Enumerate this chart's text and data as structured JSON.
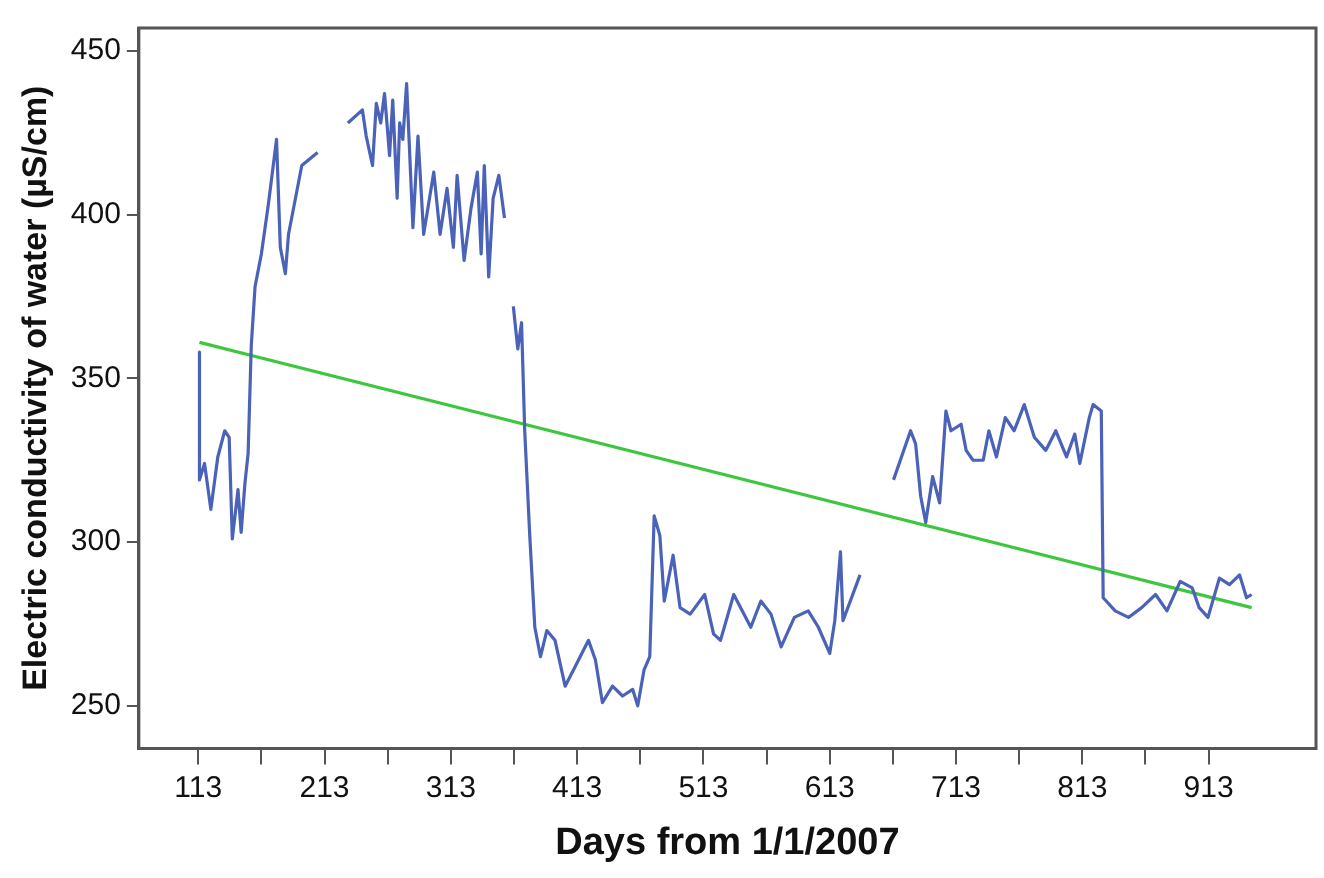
{
  "chart_data": {
    "type": "line",
    "xlabel": "Days from 1/1/2007",
    "ylabel": "Electric conductivity of water (µS/cm)",
    "x": [
      114,
      114,
      118,
      123,
      128.5,
      134,
      137.5,
      140,
      144.5,
      147,
      150,
      152.5,
      155,
      158,
      163,
      168.5,
      175,
      178,
      182,
      184.5,
      190,
      195,
      207.5,
      220,
      231.5,
      243,
      246,
      251,
      254,
      257.5,
      260.5,
      264.5,
      267,
      270.5,
      272.5,
      275,
      278,
      283,
      287,
      291.5,
      299.5,
      304.5,
      310,
      315,
      318,
      323.5,
      329,
      334,
      337,
      339.5,
      343,
      346.5,
      351,
      355.5,
      359,
      362.5,
      366,
      369,
      371.5,
      375.5,
      379.5,
      384,
      389,
      395.5,
      403.5,
      411.5,
      422,
      427.5,
      433,
      441,
      449,
      457,
      461,
      466,
      470.5,
      474,
      478.5,
      482,
      489,
      494.5,
      502.5,
      514,
      521,
      526.5,
      537,
      550.5,
      558.5,
      566.5,
      574.5,
      585,
      596,
      604,
      613,
      617,
      621.5,
      623.5,
      637,
      650,
      663.5,
      677,
      681,
      685,
      689,
      694.5,
      700,
      705,
      709,
      717,
      721,
      726.5,
      734.5,
      739,
      745,
      752,
      759,
      767,
      775,
      784,
      792,
      800.5,
      807,
      811,
      818.5,
      821.5,
      828,
      829.5,
      839,
      849.5,
      860,
      871,
      880,
      890.5,
      900,
      905.5,
      912.5,
      921.5,
      929.5,
      937.5,
      943,
      947
    ],
    "series": [
      {
        "color": "#4a62b8",
        "values": [
          358,
          319,
          324,
          310,
          326,
          334,
          332,
          301,
          316,
          303,
          318,
          327,
          360,
          378,
          388,
          403,
          423,
          390,
          382,
          394,
          405,
          415,
          419,
          null,
          428,
          432,
          424,
          415,
          434,
          428,
          437,
          418,
          435,
          405,
          428,
          423,
          440,
          396,
          424,
          394,
          413,
          394,
          408,
          390,
          412,
          386,
          402,
          413,
          388,
          415,
          381,
          405,
          412,
          399,
          null,
          372,
          359,
          367,
          334,
          302,
          274,
          265,
          273,
          270,
          256,
          262,
          270,
          264,
          251,
          256,
          253,
          255,
          250,
          261,
          265,
          308,
          302,
          282,
          296,
          280,
          278,
          284,
          272,
          270,
          284,
          274,
          282,
          278,
          268,
          277,
          279,
          274,
          266,
          276,
          297,
          276,
          290,
          null,
          319,
          334,
          330,
          314,
          306,
          320,
          312,
          340,
          334,
          336,
          328,
          325,
          325,
          334,
          326,
          338,
          334,
          342,
          332,
          328,
          334,
          326,
          333,
          324,
          338,
          342,
          340,
          283,
          279,
          277,
          280,
          284,
          279,
          288,
          286,
          280,
          277,
          289,
          287,
          290,
          283,
          284
        ]
      },
      {
        "color": "#3ec63e",
        "x": [
          114,
          947
        ],
        "values": [
          361,
          280
        ]
      }
    ],
    "xlim": [
      66,
      998
    ],
    "ylim": [
      237,
      457
    ],
    "xticks": [
      113,
      {
        "value": 163,
        "label": null
      },
      213,
      {
        "value": 263,
        "label": null
      },
      313,
      {
        "value": 363,
        "label": null
      },
      413,
      {
        "value": 463,
        "label": null
      },
      513,
      {
        "value": 563,
        "label": null
      },
      613,
      {
        "value": 663,
        "label": null
      },
      713,
      {
        "value": 763,
        "label": null
      },
      813,
      {
        "value": 863,
        "label": null
      },
      913
    ],
    "yticks": [
      250,
      300,
      350,
      400,
      450
    ],
    "grid": false,
    "legend": false,
    "marker": "none",
    "line_style": "solid"
  }
}
